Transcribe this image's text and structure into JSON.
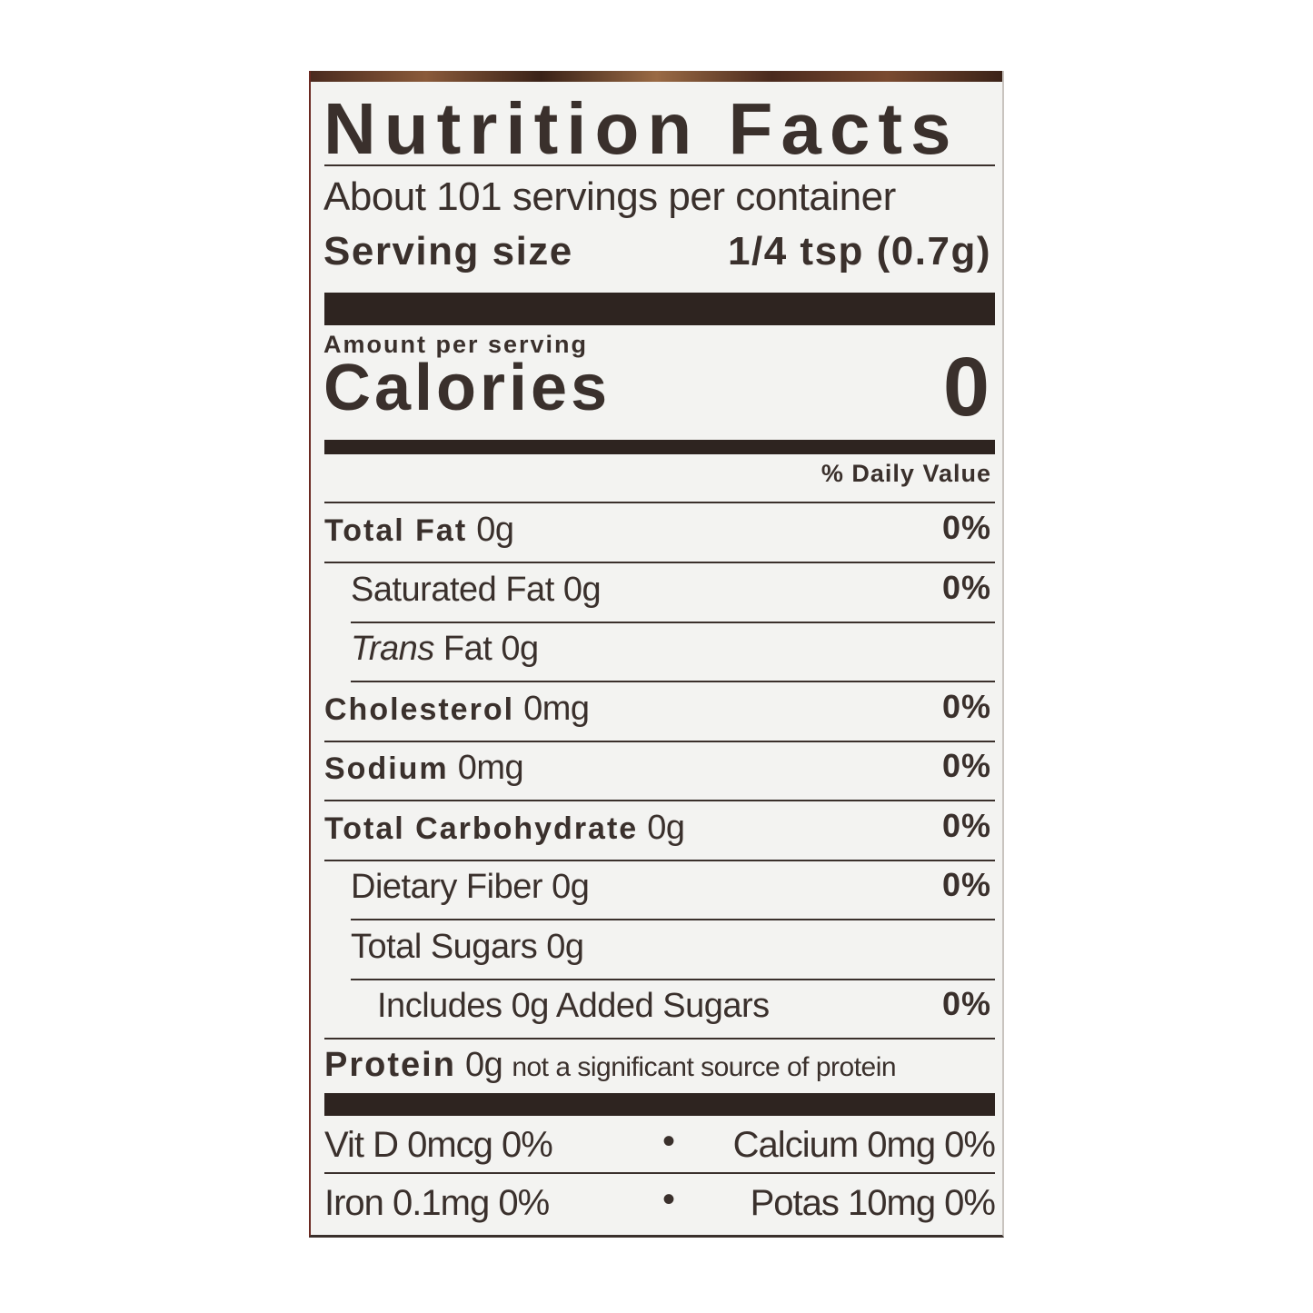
{
  "title": "Nutrition Facts",
  "servings_per_container": "About 101 servings per container",
  "serving_size": {
    "label": "Serving size",
    "value": "1/4 tsp (0.7g)"
  },
  "amount_per_serving": "Amount per serving",
  "calories": {
    "label": "Calories",
    "value": "0"
  },
  "daily_value_header": "% Daily Value",
  "nutrients": [
    {
      "name": "Total Fat",
      "amount": "0g",
      "dv": "0%",
      "bold": true,
      "indent": 0
    },
    {
      "name": "Saturated Fat",
      "amount": "0g",
      "dv": "0%",
      "bold": false,
      "indent": 1
    },
    {
      "name": "Trans",
      "name_suffix": "Fat",
      "amount": "0g",
      "dv": "",
      "bold": false,
      "indent": 1,
      "italic_prefix": true
    },
    {
      "name": "Cholesterol",
      "amount": "0mg",
      "dv": "0%",
      "bold": true,
      "indent": 0
    },
    {
      "name": "Sodium",
      "amount": "0mg",
      "dv": "0%",
      "bold": true,
      "indent": 0
    },
    {
      "name": "Total Carbohydrate",
      "amount": "0g",
      "dv": "0%",
      "bold": true,
      "indent": 0
    },
    {
      "name": "Dietary Fiber",
      "amount": "0g",
      "dv": "0%",
      "bold": false,
      "indent": 1
    },
    {
      "name": "Total Sugars",
      "amount": "0g",
      "dv": "",
      "bold": false,
      "indent": 1
    },
    {
      "name": "Includes 0g Added Sugars",
      "amount": "",
      "dv": "0%",
      "bold": false,
      "indent": 2
    }
  ],
  "protein": {
    "name": "Protein",
    "amount": "0g",
    "note": "not a significant source of protein"
  },
  "vitamins": [
    {
      "left": "Vit D 0mcg 0%",
      "sep": "•",
      "right": "Calcium 0mg 0%"
    },
    {
      "left": "Iron 0.1mg 0%",
      "sep": "•",
      "right": "Potas 10mg 0%"
    }
  ],
  "colors": {
    "ink": "#3a302c",
    "paper": "#f3f3f1"
  }
}
